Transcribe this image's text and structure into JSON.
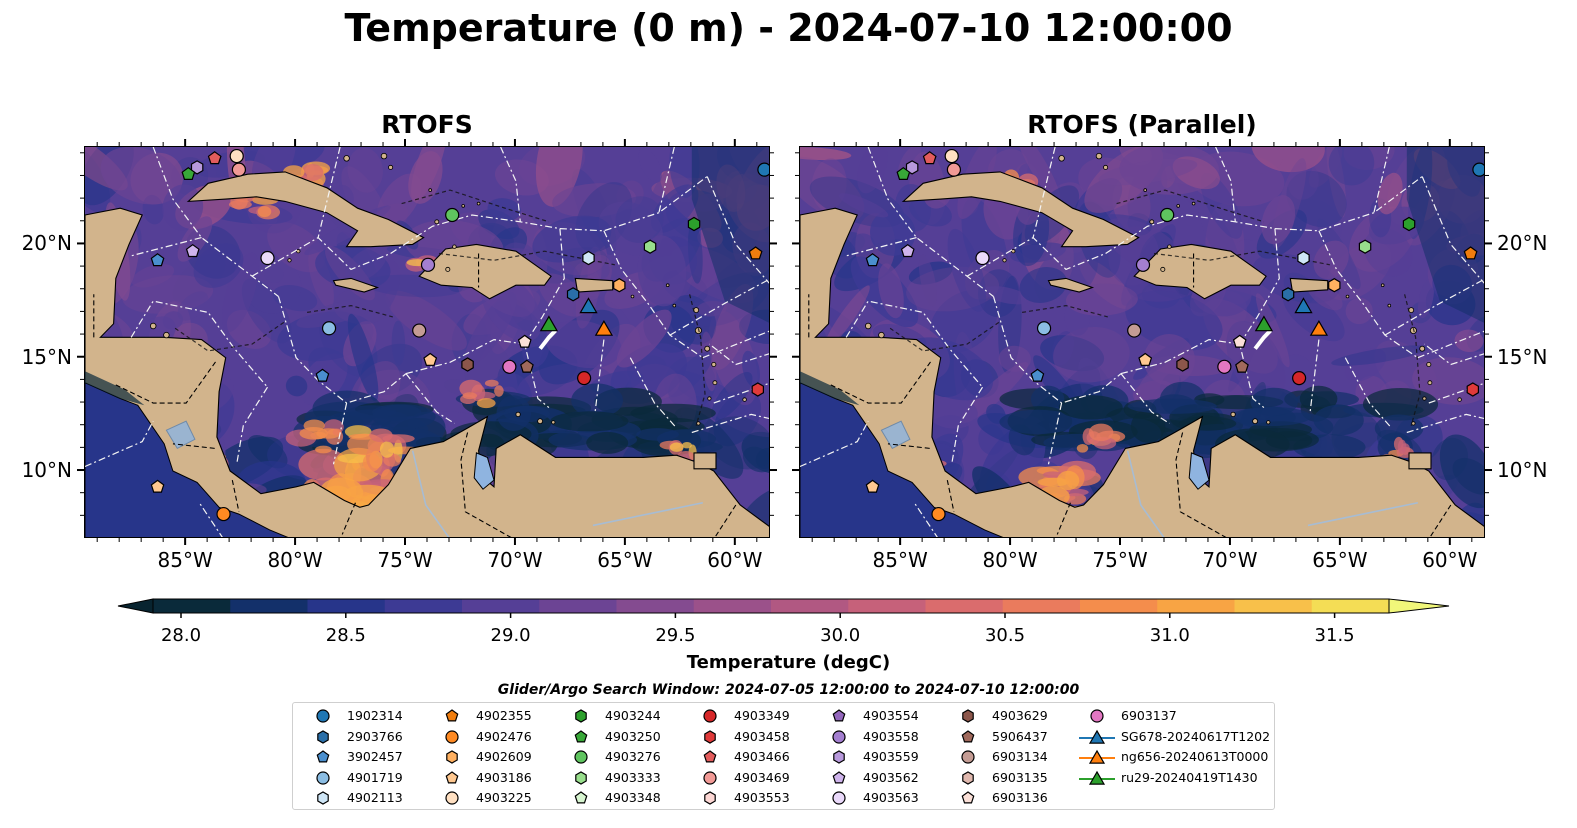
{
  "title": "Temperature (0 m) - 2024-07-10 12:00:00",
  "panels": [
    {
      "title": "RTOFS",
      "variant": "base"
    },
    {
      "title": "RTOFS (Parallel)",
      "variant": "parallel"
    }
  ],
  "lon_ticks": [
    "85°W",
    "80°W",
    "75°W",
    "70°W",
    "65°W",
    "60°W"
  ],
  "lon_tick_values": [
    -85,
    -80,
    -75,
    -70,
    -65,
    -60
  ],
  "lat_ticks": [
    "20°N",
    "15°N",
    "10°N"
  ],
  "lat_tick_values": [
    20,
    15,
    10
  ],
  "extent": {
    "lon_min": -89.6,
    "lon_max": -58.4,
    "lat_min": 7.0,
    "lat_max": 24.3
  },
  "colorbar": {
    "label": "Temperature (degC)",
    "ticks": [
      "28.0",
      "28.5",
      "29.0",
      "29.5",
      "30.0",
      "30.5",
      "31.0",
      "31.5"
    ],
    "tick_values": [
      28.0,
      28.5,
      29.0,
      29.5,
      30.0,
      30.5,
      31.0,
      31.5
    ],
    "min": 28.0,
    "max": 31.75,
    "step": 0.25,
    "colors": [
      "#0a2a3a",
      "#13306a",
      "#27358a",
      "#3d3a94",
      "#553f96",
      "#6c4494",
      "#844b90",
      "#9b518a",
      "#b15882",
      "#c6617a",
      "#da6c6d",
      "#ea7b5d",
      "#f48d4c",
      "#f8a444",
      "#f8c04a",
      "#f4dd55"
    ],
    "under_color": "#082430",
    "over_color": "#f1f77a",
    "extend": "both"
  },
  "search_window": "Glider/Argo Search Window: 2024-07-05 12:00:00 to 2024-07-10 12:00:00",
  "legend": [
    {
      "label": "1902314",
      "marker": "circle",
      "color": "#1f77b4"
    },
    {
      "label": "2903766",
      "marker": "hexagon",
      "color": "#2a6fa8"
    },
    {
      "label": "3902457",
      "marker": "pentagon",
      "color": "#4a8fce"
    },
    {
      "label": "4901719",
      "marker": "circle",
      "color": "#8bbde3"
    },
    {
      "label": "4902113",
      "marker": "hexagon",
      "color": "#cfe6f6"
    },
    {
      "label": "4902355",
      "marker": "pentagon",
      "color": "#f07d0e"
    },
    {
      "label": "4902476",
      "marker": "circle",
      "color": "#ff8a22"
    },
    {
      "label": "4902609",
      "marker": "hexagon",
      "color": "#ffb060"
    },
    {
      "label": "4903186",
      "marker": "pentagon",
      "color": "#ffc890"
    },
    {
      "label": "4903225",
      "marker": "circle",
      "color": "#ffe0c2"
    },
    {
      "label": "4903244",
      "marker": "hexagon",
      "color": "#2ca02c"
    },
    {
      "label": "4903250",
      "marker": "pentagon",
      "color": "#38a838"
    },
    {
      "label": "4903276",
      "marker": "circle",
      "color": "#5fc45f"
    },
    {
      "label": "4903333",
      "marker": "hexagon",
      "color": "#98de8c"
    },
    {
      "label": "4903348",
      "marker": "pentagon",
      "color": "#d7f5d0"
    },
    {
      "label": "4903349",
      "marker": "circle",
      "color": "#d62728"
    },
    {
      "label": "4903458",
      "marker": "hexagon",
      "color": "#e03a3a"
    },
    {
      "label": "4903466",
      "marker": "pentagon",
      "color": "#e35c5c"
    },
    {
      "label": "4903469",
      "marker": "circle",
      "color": "#f29a96"
    },
    {
      "label": "4903553",
      "marker": "hexagon",
      "color": "#fcd7d4"
    },
    {
      "label": "4903554",
      "marker": "pentagon",
      "color": "#9467bd"
    },
    {
      "label": "4903558",
      "marker": "circle",
      "color": "#a47fd0"
    },
    {
      "label": "4903559",
      "marker": "hexagon",
      "color": "#b899dc"
    },
    {
      "label": "4903562",
      "marker": "pentagon",
      "color": "#cfb4ec"
    },
    {
      "label": "4903563",
      "marker": "circle",
      "color": "#ead9fa"
    },
    {
      "label": "4903629",
      "marker": "hexagon",
      "color": "#8c564b"
    },
    {
      "label": "5906437",
      "marker": "pentagon",
      "color": "#a0695c"
    },
    {
      "label": "6903134",
      "marker": "circle",
      "color": "#c49c94"
    },
    {
      "label": "6903135",
      "marker": "hexagon",
      "color": "#e0b8ae"
    },
    {
      "label": "6903136",
      "marker": "pentagon",
      "color": "#fbe0d8"
    },
    {
      "label": "6903137",
      "marker": "circle",
      "color": "#e377c2"
    },
    {
      "label": "SG678-20240617T1202",
      "marker": "triangle-line",
      "color": "#1f77b4"
    },
    {
      "label": "ng656-20240613T0000",
      "marker": "triangle-line",
      "color": "#ff7f0e"
    },
    {
      "label": "ru29-20240419T1430",
      "marker": "triangle-line",
      "color": "#2ca02c"
    }
  ],
  "observations": [
    {
      "label": "1902314",
      "lon": -58.7,
      "lat": 23.3
    },
    {
      "label": "3902457",
      "lon": -86.3,
      "lat": 19.3
    },
    {
      "label": "4903563",
      "lon": -81.3,
      "lat": 19.4
    },
    {
      "label": "4903562",
      "lon": -84.7,
      "lat": 19.7
    },
    {
      "label": "4903559",
      "lon": -84.5,
      "lat": 23.4
    },
    {
      "label": "4903250",
      "lon": -84.9,
      "lat": 23.1
    },
    {
      "label": "4903466",
      "lon": -83.7,
      "lat": 23.8
    },
    {
      "label": "4903225",
      "lon": -82.7,
      "lat": 23.9
    },
    {
      "label": "4903469",
      "lon": -82.6,
      "lat": 23.3
    },
    {
      "label": "4903276",
      "lon": -72.9,
      "lat": 21.3
    },
    {
      "label": "4903244",
      "lon": -61.9,
      "lat": 20.9
    },
    {
      "label": "4903333",
      "lon": -63.9,
      "lat": 19.9
    },
    {
      "label": "4902355",
      "lon": -59.1,
      "lat": 19.6
    },
    {
      "label": "4903558",
      "lon": -74.0,
      "lat": 19.1
    },
    {
      "label": "4902113",
      "lon": -66.7,
      "lat": 19.4
    },
    {
      "label": "4902609",
      "lon": -65.3,
      "lat": 18.2
    },
    {
      "label": "2903766",
      "lon": -67.4,
      "lat": 17.8
    },
    {
      "label": "4901719",
      "lon": -78.5,
      "lat": 16.3
    },
    {
      "label": "6903134",
      "lon": -74.4,
      "lat": 16.2
    },
    {
      "label": "4903186",
      "lon": -73.9,
      "lat": 14.9
    },
    {
      "label": "4903629",
      "lon": -72.2,
      "lat": 14.7
    },
    {
      "label": "6903137",
      "lon": -70.3,
      "lat": 14.6
    },
    {
      "label": "5906437",
      "lon": -69.5,
      "lat": 14.6
    },
    {
      "label": "6903136",
      "lon": -69.6,
      "lat": 15.7
    },
    {
      "label": "4903349",
      "lon": -66.9,
      "lat": 14.1
    },
    {
      "label": "4903458",
      "lon": -59.0,
      "lat": 13.6
    },
    {
      "label": "3902457",
      "lon": -78.8,
      "lat": 14.2
    },
    {
      "label": "4903186",
      "lon": -86.3,
      "lat": 9.3
    },
    {
      "label": "4902476",
      "lon": -83.3,
      "lat": 8.1
    }
  ],
  "gliders": [
    {
      "label": "SG678-20240617T1202",
      "lon": -66.7,
      "lat": 17.2
    },
    {
      "label": "ng656-20240613T0000",
      "lon": -66.0,
      "lat": 16.2
    },
    {
      "label": "ru29-20240419T1430",
      "lon": -68.5,
      "lat": 16.4
    }
  ]
}
